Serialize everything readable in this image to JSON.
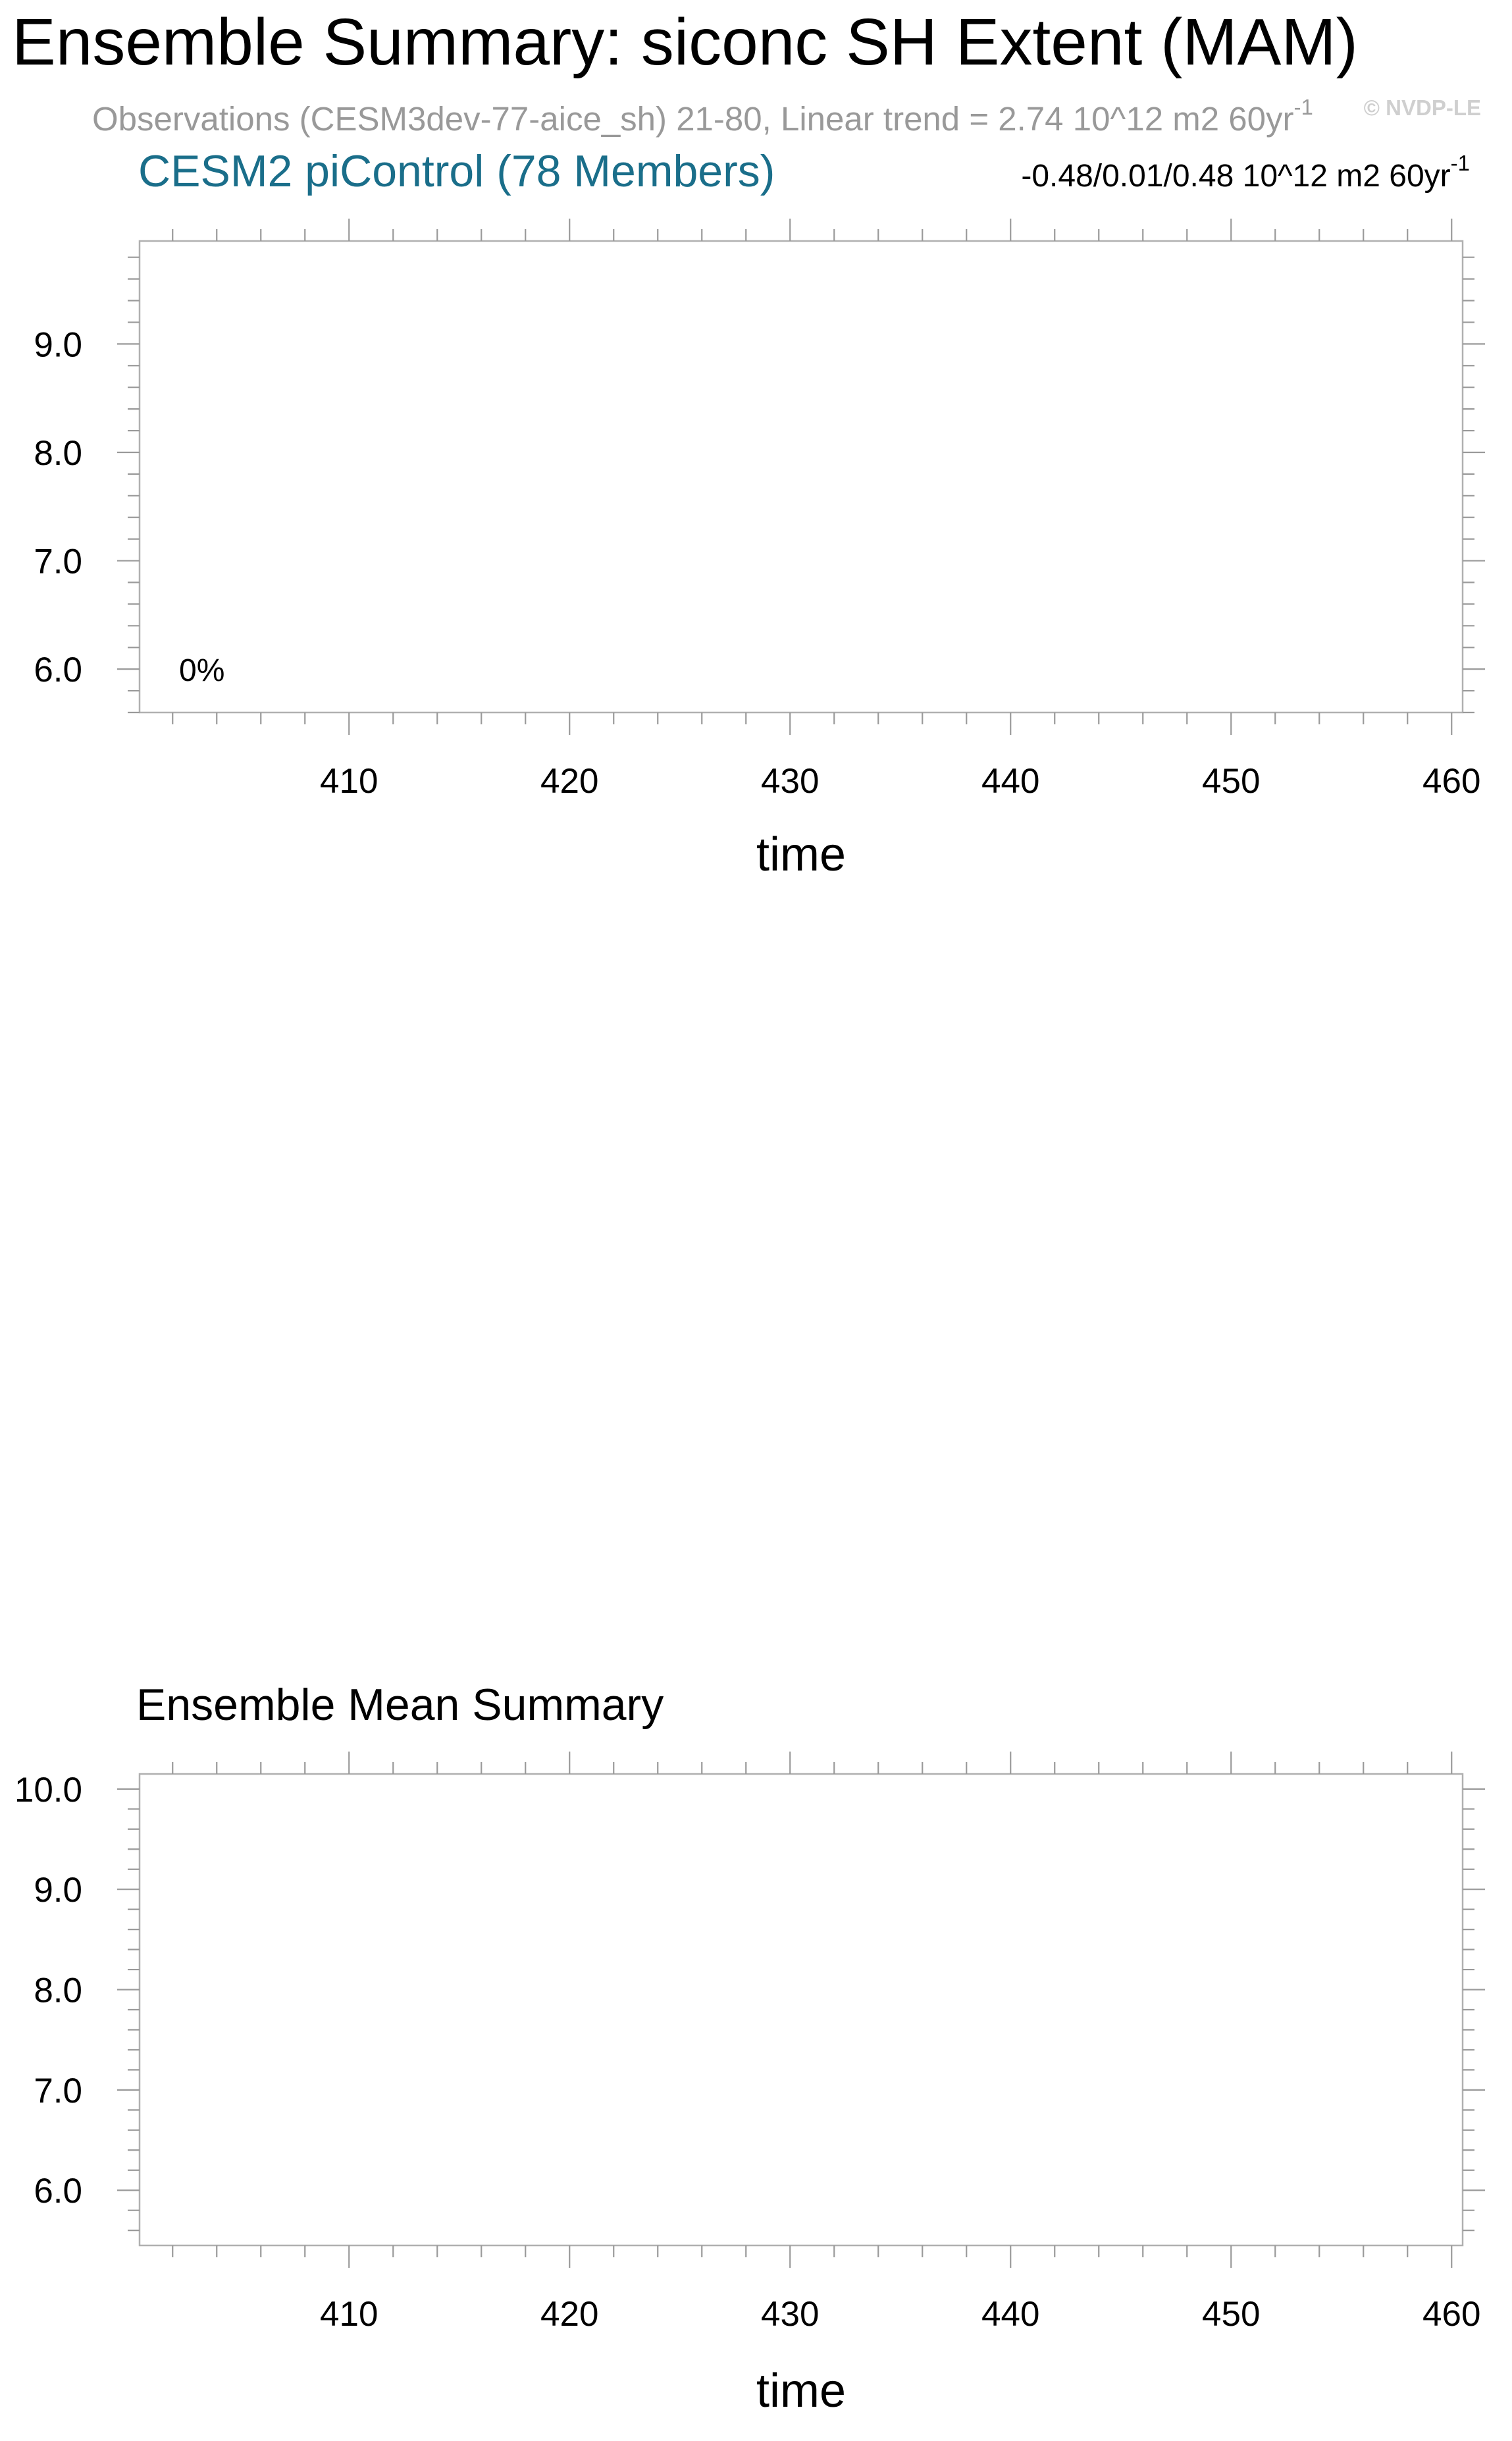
{
  "title": "Ensemble Summary: siconc SH Extent (MAM)",
  "observations_line": "Observations (CESM3dev-77-aice_sh) 21-80, Linear trend = 2.74 10^12 m2 60yr",
  "observations_line_sup": "-1",
  "watermark": "© NVDP-LE",
  "colors": {
    "title": "#000000",
    "obs": "#999999",
    "model": "#1a6e8a",
    "frame": "#b0b0b0",
    "watermark": "#cfcfcf"
  },
  "chart_data": [
    {
      "type": "line",
      "subtitle": "CESM2 piControl (78 Members)",
      "stats": "-0.48/0.01/0.48 10^12 m2 60yr",
      "stats_sup": "-1",
      "annotation": "0%",
      "xlabel": "time",
      "ylabel": "",
      "xlim": [
        400.5,
        460.5
      ],
      "ylim": [
        5.6,
        9.95
      ],
      "xticks": [
        410,
        420,
        430,
        440,
        450,
        460
      ],
      "xtick_labels": [
        "410",
        "420",
        "430",
        "440",
        "450",
        "460"
      ],
      "yticks": [
        6.0,
        7.0,
        8.0,
        9.0
      ],
      "ytick_labels": [
        "6.0",
        "7.0",
        "8.0",
        "9.0"
      ],
      "grid": false,
      "series": []
    },
    {
      "type": "line",
      "subtitle": "Ensemble Mean Summary",
      "xlabel": "time",
      "ylabel": "",
      "xlim": [
        400.5,
        460.5
      ],
      "ylim": [
        5.45,
        10.15
      ],
      "xticks": [
        410,
        420,
        430,
        440,
        450,
        460
      ],
      "xtick_labels": [
        "410",
        "420",
        "430",
        "440",
        "450",
        "460"
      ],
      "yticks": [
        6.0,
        7.0,
        8.0,
        9.0,
        10.0
      ],
      "ytick_labels": [
        "6.0",
        "7.0",
        "8.0",
        "9.0",
        "10.0"
      ],
      "grid": false,
      "series": []
    }
  ]
}
